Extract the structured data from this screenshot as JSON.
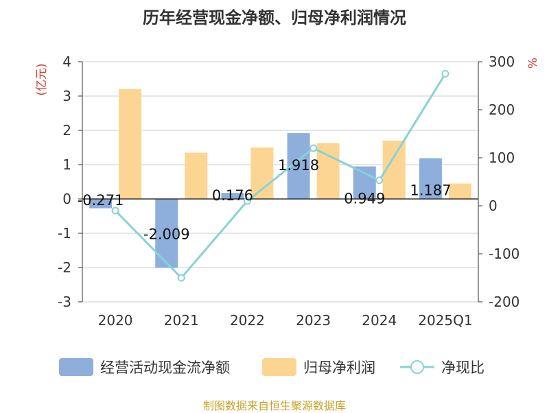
{
  "chart_data": {
    "type": "bar",
    "title": "历年经营现金净额、归母净利润情况",
    "categories": [
      "2020",
      "2021",
      "2022",
      "2023",
      "2024",
      "2025Q1"
    ],
    "series": [
      {
        "name": "经营活动现金流净额",
        "type": "bar",
        "axis": "left",
        "color": "#8eaedb",
        "values": [
          -0.271,
          -2.009,
          0.176,
          1.918,
          0.949,
          1.187
        ],
        "labels": [
          "-0.271",
          "-2.009",
          "0.176",
          "1.918",
          "0.949",
          "1.187"
        ]
      },
      {
        "name": "归母净利润",
        "type": "bar",
        "axis": "left",
        "color": "#fdd592",
        "values": [
          3.2,
          1.35,
          1.5,
          1.63,
          1.7,
          0.45
        ]
      },
      {
        "name": "净现比",
        "type": "line",
        "axis": "right",
        "color": "#86d3d7",
        "values": [
          -10,
          -150,
          10,
          120,
          53,
          275
        ]
      }
    ],
    "y_left": {
      "unit": "(亿元)",
      "ylim": [
        -3,
        4
      ],
      "ticks": [
        "4",
        "3",
        "2",
        "1",
        "0",
        "-1",
        "-2",
        "-3"
      ]
    },
    "y_right": {
      "unit": "%",
      "ylim": [
        -200,
        300
      ],
      "ticks": [
        "300",
        "200",
        "100",
        "0",
        "-100",
        "-200"
      ]
    },
    "grid": true,
    "legend_position": "bottom"
  },
  "source": "制图数据来自恒生聚源数据库"
}
